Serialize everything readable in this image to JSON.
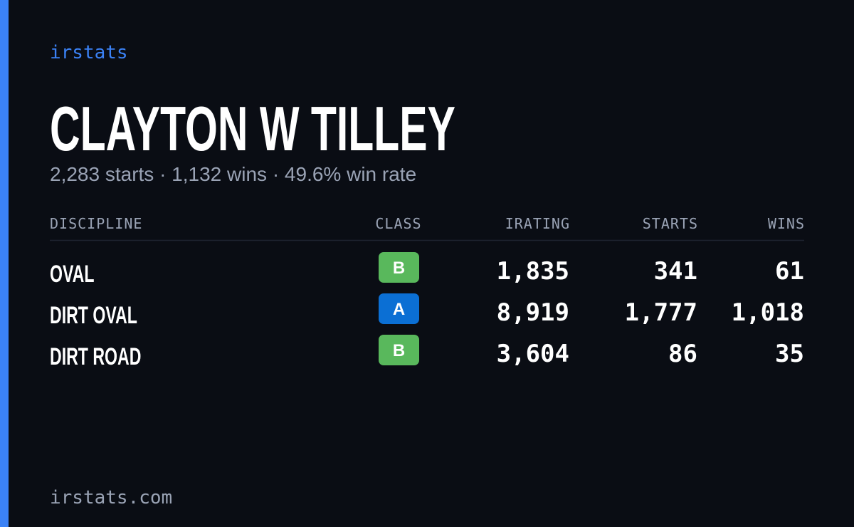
{
  "brand": "irstats",
  "header": {
    "title": "CLAYTON W TILLEY",
    "subtitle": "2,283 starts · 1,132 wins · 49.6% win rate"
  },
  "table": {
    "columns": [
      "DISCIPLINE",
      "CLASS",
      "IRATING",
      "STARTS",
      "WINS"
    ],
    "rows": [
      [
        "OVAL",
        "B",
        "1,835",
        "341",
        "61"
      ],
      [
        "DIRT OVAL",
        "A",
        "8,919",
        "1,777",
        "1,018"
      ],
      [
        "DIRT ROAD",
        "B",
        "3,604",
        "86",
        "35"
      ]
    ]
  },
  "footer": "irstats.com"
}
